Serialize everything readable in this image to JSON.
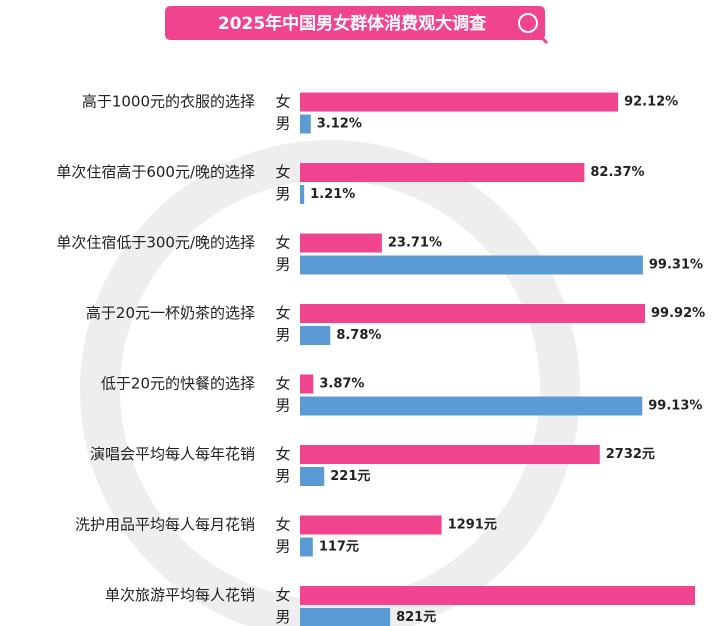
{
  "chart_data": {
    "type": "grouped-hbar",
    "title": "2025年中国男女群体消费观大调查",
    "categories": [
      "高于1000元的衣服的选择",
      "单次住宿高于600元/晚的选择",
      "单次住宿低于300元/晚的选择",
      "高于20元一杯奶茶的选择",
      "低于20元的快餐的选择",
      "演唱会平均每人每年花销",
      "洗护用品平均每人每月花销",
      "单次旅游平均每人花销"
    ],
    "series": [
      {
        "name": "女",
        "color": "#f0448e",
        "values": [
          92.12,
          82.37,
          23.71,
          99.92,
          3.87,
          2732,
          1291,
          3600
        ],
        "value_labels": [
          "92.12%",
          "82.37%",
          "23.71%",
          "99.92%",
          "3.87%",
          "2732元",
          "1291元",
          null
        ]
      },
      {
        "name": "男",
        "color": "#5b9bd5",
        "values": [
          3.12,
          1.21,
          99.31,
          8.78,
          99.13,
          221,
          117,
          821
        ],
        "value_labels": [
          "3.12%",
          "1.21%",
          "99.31%",
          "8.78%",
          "99.13%",
          "221元",
          "117元",
          "821元"
        ]
      }
    ]
  }
}
